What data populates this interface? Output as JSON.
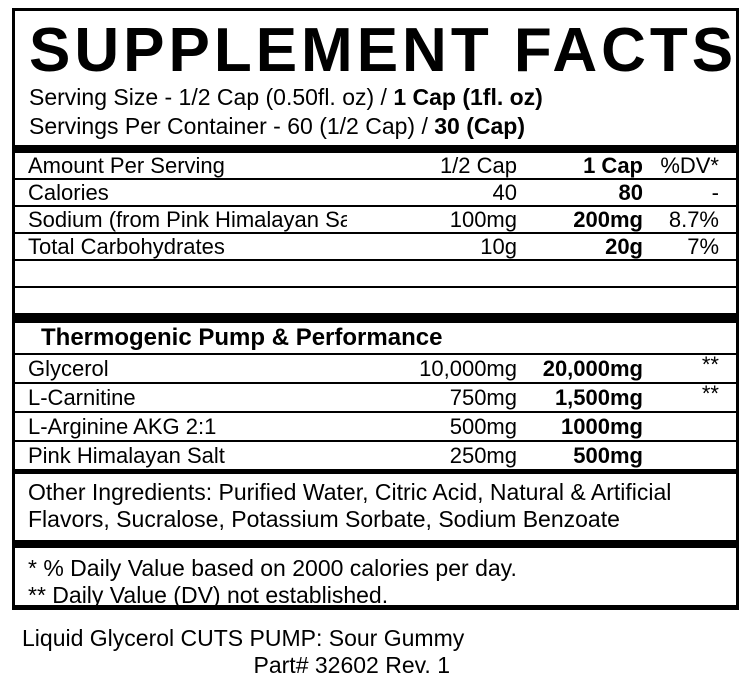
{
  "title": "SUPPLEMENT FACTS",
  "serving": {
    "size_prefix": "Serving Size - 1/2 Cap (0.50fl. oz) / ",
    "size_bold": "1 Cap (1fl. oz)",
    "container_prefix": "Servings Per Container - 60 (1/2 Cap) / ",
    "container_bold": "30 (Cap)"
  },
  "main_table": {
    "header": {
      "name": "Amount Per Serving",
      "half": "1/2 Cap",
      "full": "1 Cap",
      "dv": "%DV*"
    },
    "rows": [
      {
        "name": "Calories",
        "half": "40",
        "full": "80",
        "dv": "-"
      },
      {
        "name": "Sodium (from Pink Himalayan Salt)",
        "half": "100mg",
        "full": "200mg",
        "dv": "8.7%"
      },
      {
        "name": "Total Carbohydrates",
        "half": "10g",
        "full": "20g",
        "dv": "7%"
      }
    ]
  },
  "thermo_section": {
    "title": "Thermogenic Pump & Performance",
    "rows": [
      {
        "name": "Glycerol",
        "half": "10,000mg",
        "full": "20,000mg",
        "dv": "**"
      },
      {
        "name": "L-Carnitine",
        "half": "750mg",
        "full": "1,500mg",
        "dv": "**"
      },
      {
        "name": "L-Arginine AKG 2:1",
        "half": "500mg",
        "full": "1000mg",
        "dv": ""
      },
      {
        "name": "Pink Himalayan Salt",
        "half": "250mg",
        "full": "500mg",
        "dv": ""
      }
    ]
  },
  "other_ingredients": "Other Ingredients: Purified Water, Citric Acid, Natural & Artificial Flavors, Sucralose, Potassium Sorbate, Sodium Benzoate",
  "footnotes": {
    "line1": "* % Daily Value based on 2000 calories per day.",
    "line2": "** Daily Value (DV) not established."
  },
  "footer": {
    "line1": "Liquid Glycerol CUTS PUMP: Sour Gummy",
    "line2": "Part# 32602 Rev. 1"
  },
  "colors": {
    "text": "#000000",
    "background": "#ffffff",
    "border": "#000000"
  }
}
